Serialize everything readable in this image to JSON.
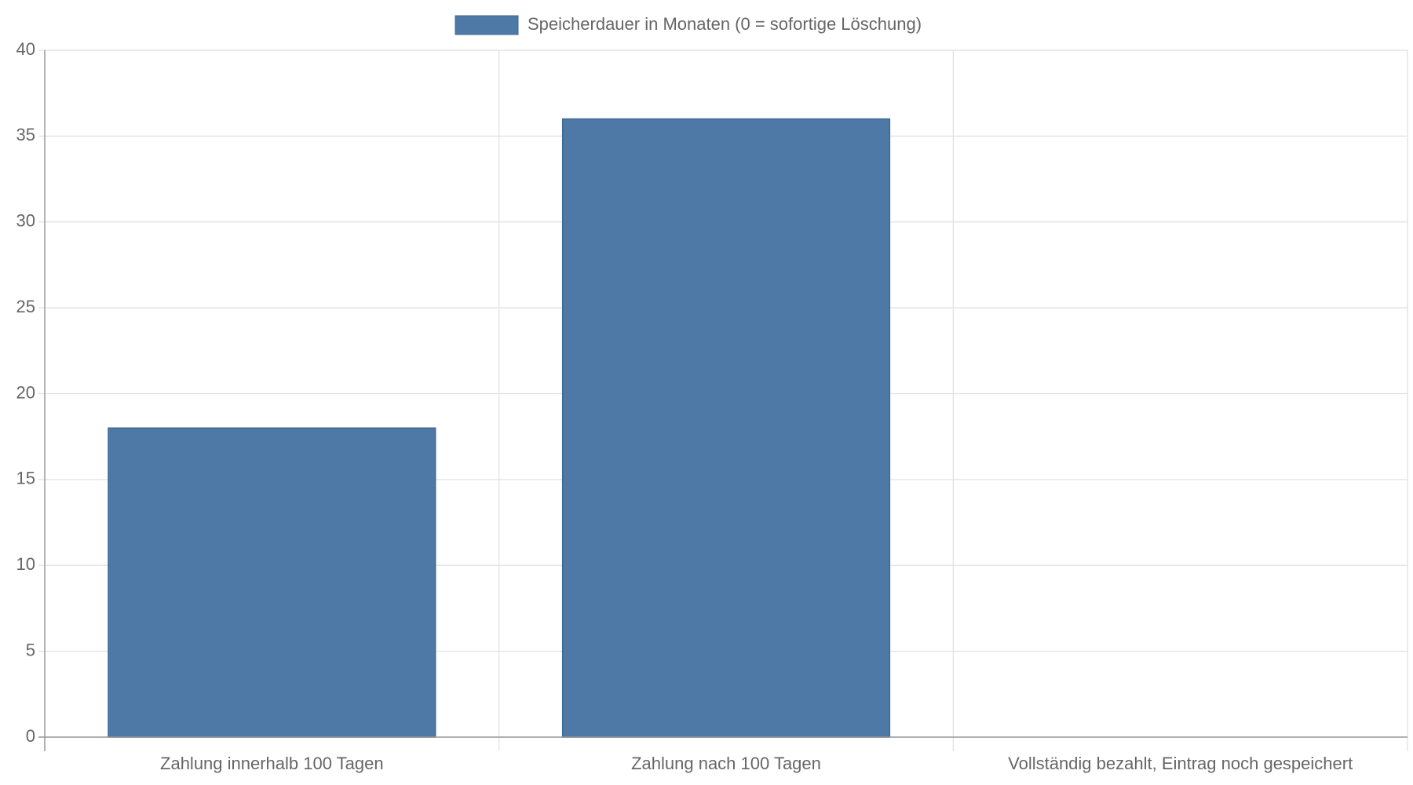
{
  "chart_data": {
    "type": "bar",
    "legend": "Speicherdauer in Monaten (0 = sofortige Löschung)",
    "categories": [
      "Zahlung innerhalb 100 Tagen",
      "Zahlung nach 100 Tagen",
      "Vollständig bezahlt, Eintrag noch gespeichert"
    ],
    "values": [
      18,
      36,
      0
    ],
    "color": "#4e79a7",
    "ylim": [
      0,
      40
    ],
    "yticks": [
      0,
      5,
      10,
      15,
      20,
      25,
      30,
      35,
      40
    ],
    "grid": true
  }
}
